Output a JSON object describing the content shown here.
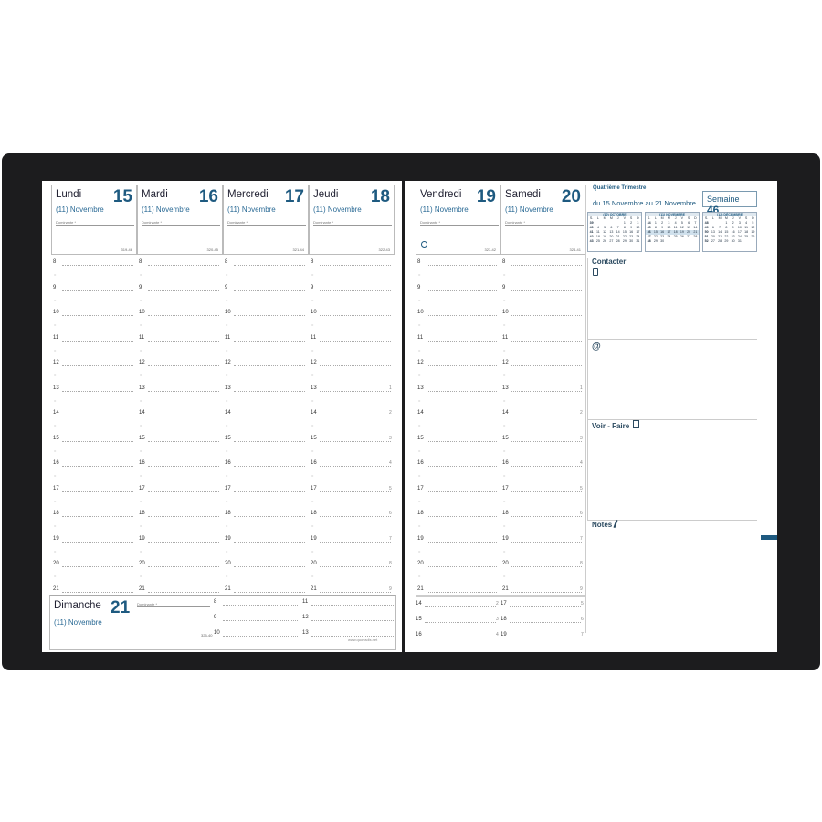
{
  "left_page": {
    "days": [
      {
        "name": "Lundi",
        "number": "15",
        "month": "(11) Novembre",
        "field": "Dominante *",
        "code": "319-46"
      },
      {
        "name": "Mardi",
        "number": "16",
        "month": "(11) Novembre",
        "field": "Dominante *",
        "code": "320-45"
      },
      {
        "name": "Mercredi",
        "number": "17",
        "month": "(11) Novembre",
        "field": "Dominante *",
        "code": "321-44"
      },
      {
        "name": "Jeudi",
        "number": "18",
        "month": "(11) Novembre",
        "field": "Dominante *",
        "code": "322-43"
      }
    ],
    "sunday": {
      "name": "Dimanche",
      "number": "21",
      "month": "(11) Novembre",
      "field": "Dominante *",
      "code": "325-40",
      "hours": [
        "8",
        "9",
        "10",
        "11",
        "12",
        "13"
      ]
    },
    "website": "www.quovadis.net"
  },
  "right_page": {
    "days": [
      {
        "name": "Vendredi",
        "number": "19",
        "month": "(11) Novembre",
        "field": "Dominante *",
        "code": "323-42"
      },
      {
        "name": "Samedi",
        "number": "20",
        "month": "(11) Novembre",
        "field": "Dominante *",
        "code": "324-41"
      }
    ],
    "bottom_hours": [
      [
        "14",
        "2",
        "17",
        "5"
      ],
      [
        "15",
        "3",
        "18",
        "6"
      ],
      [
        "16",
        "4",
        "19",
        "7"
      ]
    ],
    "quarter": "Quatrième Trimestre",
    "range": "du 15 Novembre au 21 Novembre",
    "week_label": "Semaine",
    "week_number": "46",
    "sections": {
      "contact": "Contacter",
      "email": "@",
      "todo": "Voir - Faire",
      "notes": "Notes"
    },
    "calendars": [
      {
        "title": "(10) OCTOBRE",
        "rows": [
          [
            "39",
            "",
            "",
            "",
            "",
            "1",
            "2",
            "3"
          ],
          [
            "40",
            "4",
            "5",
            "6",
            "7",
            "8",
            "9",
            "10"
          ],
          [
            "41",
            "11",
            "12",
            "13",
            "14",
            "15",
            "16",
            "17"
          ],
          [
            "42",
            "18",
            "19",
            "20",
            "21",
            "22",
            "23",
            "24"
          ],
          [
            "43",
            "25",
            "26",
            "27",
            "28",
            "29",
            "30",
            "31"
          ]
        ]
      },
      {
        "title": "(11) NOVEMBRE",
        "rows": [
          [
            "44",
            "1",
            "2",
            "3",
            "4",
            "5",
            "6",
            "7"
          ],
          [
            "45",
            "8",
            "9",
            "10",
            "11",
            "12",
            "13",
            "14"
          ],
          [
            "46",
            "15",
            "16",
            "17",
            "18",
            "19",
            "20",
            "21"
          ],
          [
            "47",
            "22",
            "23",
            "24",
            "25",
            "26",
            "27",
            "28"
          ],
          [
            "48",
            "29",
            "30",
            "",
            "",
            "",
            "",
            ""
          ]
        ]
      },
      {
        "title": "(12) DÉCEMBRE",
        "rows": [
          [
            "48",
            "",
            "",
            "1",
            "2",
            "3",
            "4",
            "5"
          ],
          [
            "49",
            "6",
            "7",
            "8",
            "9",
            "10",
            "11",
            "12"
          ],
          [
            "50",
            "13",
            "14",
            "15",
            "16",
            "17",
            "18",
            "19"
          ],
          [
            "51",
            "20",
            "21",
            "22",
            "23",
            "24",
            "25",
            "26"
          ],
          [
            "52",
            "27",
            "28",
            "29",
            "30",
            "31",
            "",
            ""
          ]
        ]
      }
    ],
    "weekday_header": [
      "S.",
      "L",
      "M",
      "M",
      "J",
      "V",
      "S",
      "D"
    ]
  },
  "hours": [
    "8",
    "9",
    "10",
    "11",
    "12",
    "13",
    "14",
    "15",
    "16",
    "17",
    "18",
    "19",
    "20",
    "21"
  ],
  "margin_numbers": [
    "1",
    "2",
    "3",
    "4",
    "5",
    "6",
    "7",
    "8",
    "9"
  ],
  "colors": {
    "accent": "#1e5a80",
    "cover": "#1c1c1e"
  }
}
